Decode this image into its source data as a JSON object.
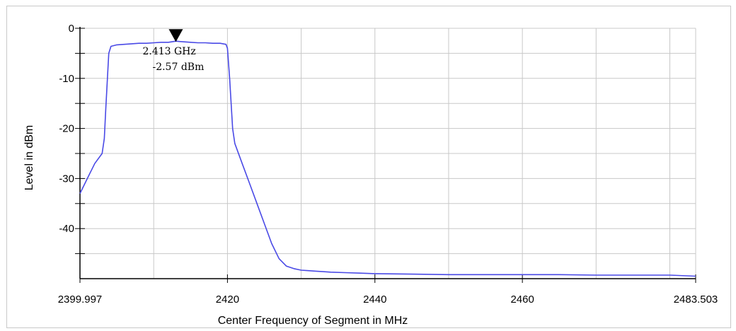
{
  "chart_data": {
    "type": "line",
    "xlabel": "Center Frequency of Segment in MHz",
    "ylabel": "Level in dBm",
    "xlim": [
      2399.997,
      2483.503
    ],
    "ylim": [
      -50,
      0
    ],
    "x_ticks": [
      {
        "value": 2399.997,
        "label": "2399.997"
      },
      {
        "value": 2420,
        "label": "2420"
      },
      {
        "value": 2440,
        "label": "2440"
      },
      {
        "value": 2460,
        "label": "2460"
      },
      {
        "value": 2483.503,
        "label": "2483.503"
      }
    ],
    "x_gridlines": [
      2410,
      2420,
      2430,
      2440,
      2450,
      2460,
      2470,
      2480
    ],
    "y_ticks": [
      {
        "value": 0,
        "label": "0"
      },
      {
        "value": -10,
        "label": "-10"
      },
      {
        "value": -20,
        "label": "-20"
      },
      {
        "value": -30,
        "label": "-30"
      },
      {
        "value": -40,
        "label": "-40"
      }
    ],
    "y_minor_ticks": [
      -5,
      -15,
      -25,
      -35,
      -45
    ],
    "grid": true,
    "series": [
      {
        "color": "#4a4ae6",
        "x": [
          2399.997,
          2401,
          2402,
          2403,
          2403.3,
          2403.5,
          2403.9,
          2404.2,
          2405,
          2406,
          2407,
          2408,
          2409,
          2410,
          2411,
          2412,
          2413,
          2414,
          2415,
          2416,
          2417,
          2418,
          2419,
          2419.8,
          2420.0,
          2420.3,
          2420.7,
          2421,
          2422,
          2423,
          2424,
          2425,
          2426,
          2427,
          2428,
          2429,
          2430,
          2431,
          2432,
          2433,
          2434,
          2436,
          2438,
          2440,
          2445,
          2450,
          2455,
          2460,
          2465,
          2470,
          2475,
          2480,
          2483.503
        ],
        "y": [
          -33,
          -30,
          -27,
          -25,
          -22,
          -16,
          -5,
          -3.6,
          -3.3,
          -3.2,
          -3.1,
          -3.0,
          -3.0,
          -2.9,
          -2.8,
          -2.8,
          -2.57,
          -2.7,
          -2.8,
          -2.9,
          -2.9,
          -3.0,
          -3.0,
          -3.2,
          -4.0,
          -10,
          -20,
          -23,
          -27,
          -31,
          -35,
          -39,
          -43,
          -46,
          -47.5,
          -48,
          -48.3,
          -48.4,
          -48.5,
          -48.6,
          -48.7,
          -48.8,
          -48.9,
          -49.0,
          -49.1,
          -49.2,
          -49.2,
          -49.2,
          -49.2,
          -49.3,
          -49.3,
          -49.3,
          -49.5
        ]
      }
    ],
    "marker": {
      "x": 2413,
      "y": -2.57,
      "freq_label": "2.413 GHz",
      "level_label": "-2.57 dBm"
    }
  }
}
